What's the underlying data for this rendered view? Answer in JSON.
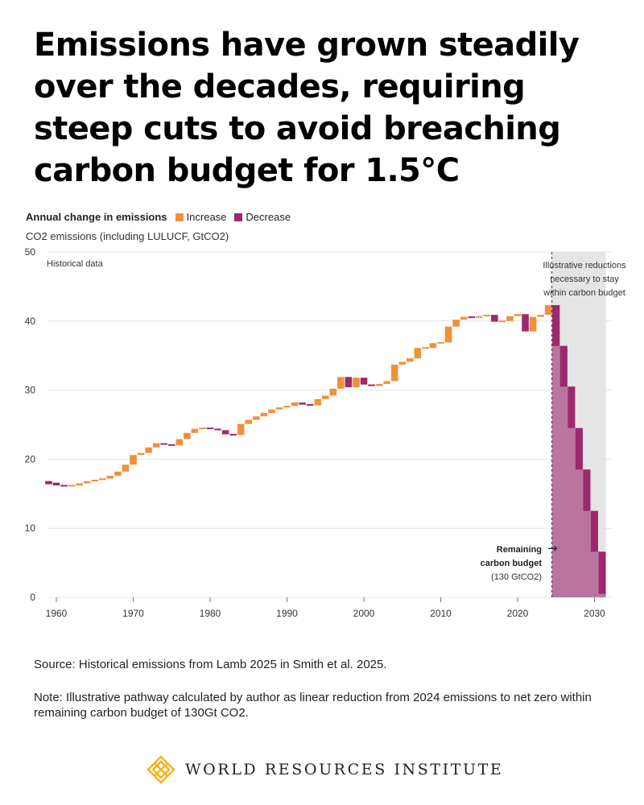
{
  "headline": "Emissions have grown steadily over the decades, requiring steep cuts to avoid breaching carbon budget for 1.5°C",
  "legend": {
    "title": "Annual change in emissions",
    "increase_label": "Increase",
    "decrease_label": "Decrease",
    "increase_color": "#f0913a",
    "decrease_color": "#9c2a6e"
  },
  "subtitle": "CO2 emissions (including  LULUCF, GtCO2)",
  "chart_data": {
    "type": "waterfall",
    "title": "Annual change in emissions",
    "ylabel": "CO2 emissions (including  LULUCF, GtCO2)",
    "ylim": [
      0,
      50
    ],
    "yticks": [
      0,
      10,
      20,
      30,
      40,
      50
    ],
    "xlim": [
      1959,
      2032
    ],
    "xticks": [
      1960,
      1970,
      1980,
      1990,
      2000,
      2010,
      2020,
      2030
    ],
    "series": [
      {
        "name": "Historical emissions",
        "years": [
          1959,
          1960,
          1961,
          1962,
          1963,
          1964,
          1965,
          1966,
          1967,
          1968,
          1969,
          1970,
          1971,
          1972,
          1973,
          1974,
          1975,
          1976,
          1977,
          1978,
          1979,
          1980,
          1981,
          1982,
          1983,
          1984,
          1985,
          1986,
          1987,
          1988,
          1989,
          1990,
          1991,
          1992,
          1993,
          1994,
          1995,
          1996,
          1997,
          1998,
          1999,
          2000,
          2001,
          2002,
          2003,
          2004,
          2005,
          2006,
          2007,
          2008,
          2009,
          2010,
          2011,
          2012,
          2013,
          2014,
          2015,
          2016,
          2017,
          2018,
          2019,
          2020,
          2021,
          2022,
          2023,
          2024
        ],
        "values": [
          16.6,
          16.2,
          16.1,
          16.2,
          16.5,
          16.8,
          17.0,
          17.2,
          17.6,
          18.2,
          19.2,
          20.6,
          20.9,
          21.7,
          22.3,
          22.1,
          22.0,
          22.9,
          23.8,
          24.4,
          24.5,
          24.4,
          24.2,
          23.6,
          23.5,
          25.1,
          25.7,
          26.2,
          26.7,
          27.2,
          27.5,
          27.7,
          28.2,
          27.9,
          27.8,
          28.7,
          29.2,
          30.2,
          31.9,
          30.4,
          31.8,
          30.8,
          30.6,
          30.9,
          31.3,
          33.7,
          34.1,
          34.6,
          36.1,
          36.1,
          36.8,
          36.9,
          39.2,
          40.2,
          40.6,
          40.5,
          40.7,
          40.9,
          39.9,
          40.0,
          40.7,
          41.0,
          38.5,
          40.6,
          40.9,
          42.3
        ]
      },
      {
        "name": "Illustrative reductions necessary to stay within carbon budget",
        "years": [
          2025,
          2026,
          2027,
          2028,
          2029,
          2030,
          2031
        ],
        "values": [
          36.4,
          30.5,
          24.5,
          18.5,
          12.5,
          6.6,
          0.5
        ]
      }
    ],
    "annotations": {
      "historical": "Historical data",
      "projection": [
        "Illustrative   reductions",
        "necessary to stay",
        "within carbon budget"
      ],
      "budget": [
        "Remaining",
        "carbon budget",
        "(130 GtCO2)"
      ],
      "arrow": "→"
    }
  },
  "source": "Source: Historical emissions from Lamb 2025 in Smith et al. 2025.",
  "note": "Note: Illustrative pathway calculated by author as linear reduction from 2024 emissions to net zero within remaining carbon budget of 130Gt CO2.",
  "logo": {
    "name": "WORLD RESOURCES INSTITUTE",
    "icon": "wri-lattice-icon",
    "color": "#f2b31b"
  }
}
